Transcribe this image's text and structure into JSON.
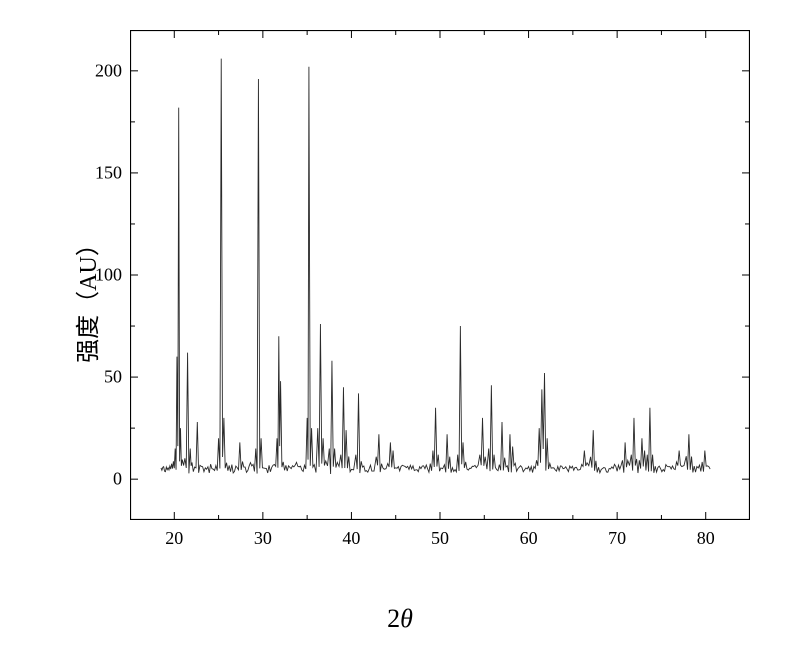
{
  "chart": {
    "type": "line",
    "xlabel": "2θ",
    "ylabel": "强度（AU）",
    "xlabel_fontsize": 26,
    "ylabel_fontsize": 24,
    "tick_fontsize": 18,
    "background_color": "#ffffff",
    "line_color": "#2a2a2a",
    "axis_color": "#000000",
    "line_width": 0.9,
    "xlim": [
      15,
      85
    ],
    "ylim": [
      -20,
      220
    ],
    "xticks": [
      20,
      30,
      40,
      50,
      60,
      70,
      80
    ],
    "yticks": [
      0,
      50,
      100,
      150,
      200
    ],
    "xtick_minor": [
      15,
      25,
      35,
      45,
      55,
      65,
      75,
      85
    ],
    "ytick_minor": [
      25,
      75,
      125,
      175
    ],
    "tick_length_major": 8,
    "tick_length_minor": 5,
    "data": [
      [
        18.5,
        5
      ],
      [
        18.7,
        6
      ],
      [
        18.9,
        4
      ],
      [
        19.1,
        7
      ],
      [
        19.3,
        5
      ],
      [
        19.5,
        8
      ],
      [
        19.7,
        6
      ],
      [
        19.9,
        10
      ],
      [
        20.1,
        15
      ],
      [
        20.3,
        60
      ],
      [
        20.5,
        182
      ],
      [
        20.7,
        25
      ],
      [
        20.9,
        8
      ],
      [
        21.2,
        10
      ],
      [
        21.5,
        62
      ],
      [
        21.8,
        15
      ],
      [
        22.0,
        7
      ],
      [
        22.3,
        6
      ],
      [
        22.6,
        28
      ],
      [
        22.9,
        8
      ],
      [
        23.2,
        6
      ],
      [
        23.5,
        5
      ],
      [
        23.8,
        7
      ],
      [
        24.1,
        6
      ],
      [
        24.4,
        5
      ],
      [
        24.7,
        8
      ],
      [
        25.0,
        20
      ],
      [
        25.3,
        206
      ],
      [
        25.6,
        30
      ],
      [
        25.9,
        8
      ],
      [
        26.2,
        6
      ],
      [
        26.5,
        7
      ],
      [
        26.8,
        5
      ],
      [
        27.1,
        6
      ],
      [
        27.4,
        18
      ],
      [
        27.7,
        8
      ],
      [
        28.0,
        6
      ],
      [
        28.3,
        5
      ],
      [
        28.6,
        7
      ],
      [
        28.9,
        6
      ],
      [
        29.2,
        15
      ],
      [
        29.5,
        196
      ],
      [
        29.8,
        20
      ],
      [
        30.1,
        7
      ],
      [
        30.4,
        5
      ],
      [
        30.7,
        6
      ],
      [
        31.0,
        5
      ],
      [
        31.3,
        6
      ],
      [
        31.6,
        20
      ],
      [
        31.8,
        70
      ],
      [
        32.0,
        48
      ],
      [
        32.3,
        10
      ],
      [
        32.6,
        6
      ],
      [
        32.9,
        5
      ],
      [
        33.2,
        6
      ],
      [
        33.5,
        5
      ],
      [
        33.8,
        7
      ],
      [
        34.1,
        5
      ],
      [
        34.4,
        6
      ],
      [
        34.7,
        8
      ],
      [
        35.0,
        30
      ],
      [
        35.2,
        202
      ],
      [
        35.5,
        25
      ],
      [
        35.8,
        8
      ],
      [
        36.2,
        25
      ],
      [
        36.5,
        76
      ],
      [
        36.8,
        20
      ],
      [
        37.1,
        8
      ],
      [
        37.5,
        15
      ],
      [
        37.8,
        58
      ],
      [
        38.1,
        15
      ],
      [
        38.4,
        7
      ],
      [
        38.8,
        12
      ],
      [
        39.1,
        45
      ],
      [
        39.4,
        24
      ],
      [
        39.7,
        10
      ],
      [
        40.0,
        6
      ],
      [
        40.5,
        12
      ],
      [
        40.8,
        42
      ],
      [
        41.1,
        10
      ],
      [
        41.4,
        6
      ],
      [
        41.7,
        5
      ],
      [
        42.0,
        6
      ],
      [
        42.3,
        5
      ],
      [
        42.8,
        10
      ],
      [
        43.1,
        22
      ],
      [
        43.4,
        8
      ],
      [
        43.7,
        5
      ],
      [
        44.1,
        9
      ],
      [
        44.4,
        18
      ],
      [
        44.7,
        14
      ],
      [
        45.0,
        7
      ],
      [
        45.3,
        5
      ],
      [
        45.6,
        6
      ],
      [
        45.9,
        5
      ],
      [
        46.2,
        6
      ],
      [
        46.5,
        5
      ],
      [
        46.8,
        6
      ],
      [
        47.1,
        5
      ],
      [
        47.4,
        5
      ],
      [
        47.7,
        6
      ],
      [
        48.0,
        5
      ],
      [
        48.3,
        6
      ],
      [
        48.6,
        5
      ],
      [
        48.9,
        8
      ],
      [
        49.2,
        14
      ],
      [
        49.5,
        35
      ],
      [
        49.8,
        12
      ],
      [
        50.1,
        6
      ],
      [
        50.5,
        8
      ],
      [
        50.8,
        22
      ],
      [
        51.1,
        10
      ],
      [
        51.4,
        6
      ],
      [
        51.7,
        5
      ],
      [
        52.0,
        12
      ],
      [
        52.3,
        75
      ],
      [
        52.6,
        18
      ],
      [
        52.9,
        7
      ],
      [
        53.2,
        5
      ],
      [
        53.5,
        6
      ],
      [
        53.8,
        5
      ],
      [
        54.1,
        6
      ],
      [
        54.5,
        12
      ],
      [
        54.8,
        30
      ],
      [
        55.1,
        10
      ],
      [
        55.5,
        15
      ],
      [
        55.8,
        46
      ],
      [
        56.1,
        12
      ],
      [
        56.4,
        6
      ],
      [
        56.7,
        8
      ],
      [
        57.0,
        28
      ],
      [
        57.3,
        10
      ],
      [
        57.6,
        8
      ],
      [
        57.9,
        22
      ],
      [
        58.2,
        16
      ],
      [
        58.5,
        8
      ],
      [
        58.8,
        5
      ],
      [
        59.1,
        6
      ],
      [
        59.4,
        5
      ],
      [
        59.7,
        6
      ],
      [
        60.0,
        5
      ],
      [
        60.3,
        6
      ],
      [
        60.6,
        5
      ],
      [
        60.9,
        10
      ],
      [
        61.2,
        25
      ],
      [
        61.5,
        44
      ],
      [
        61.8,
        52
      ],
      [
        62.1,
        20
      ],
      [
        62.4,
        8
      ],
      [
        62.7,
        5
      ],
      [
        63.0,
        6
      ],
      [
        63.3,
        5
      ],
      [
        63.6,
        6
      ],
      [
        63.9,
        5
      ],
      [
        64.2,
        6
      ],
      [
        64.5,
        5
      ],
      [
        64.8,
        6
      ],
      [
        65.1,
        5
      ],
      [
        65.4,
        6
      ],
      [
        65.7,
        5
      ],
      [
        66.0,
        8
      ],
      [
        66.3,
        14
      ],
      [
        66.6,
        8
      ],
      [
        67.0,
        10
      ],
      [
        67.3,
        24
      ],
      [
        67.6,
        10
      ],
      [
        67.9,
        6
      ],
      [
        68.2,
        5
      ],
      [
        68.5,
        6
      ],
      [
        68.8,
        5
      ],
      [
        69.1,
        6
      ],
      [
        69.4,
        5
      ],
      [
        69.7,
        6
      ],
      [
        70.0,
        5
      ],
      [
        70.3,
        6
      ],
      [
        70.6,
        8
      ],
      [
        70.9,
        18
      ],
      [
        71.2,
        8
      ],
      [
        71.6,
        12
      ],
      [
        71.9,
        30
      ],
      [
        72.2,
        10
      ],
      [
        72.5,
        8
      ],
      [
        72.8,
        20
      ],
      [
        73.1,
        14
      ],
      [
        73.4,
        12
      ],
      [
        73.7,
        35
      ],
      [
        74.0,
        12
      ],
      [
        74.3,
        7
      ],
      [
        74.6,
        5
      ],
      [
        74.9,
        6
      ],
      [
        75.2,
        5
      ],
      [
        75.5,
        6
      ],
      [
        75.8,
        5
      ],
      [
        76.1,
        6
      ],
      [
        76.4,
        5
      ],
      [
        76.7,
        8
      ],
      [
        77.0,
        14
      ],
      [
        77.3,
        7
      ],
      [
        77.8,
        10
      ],
      [
        78.1,
        22
      ],
      [
        78.4,
        10
      ],
      [
        78.7,
        6
      ],
      [
        79.0,
        5
      ],
      [
        79.3,
        6
      ],
      [
        79.6,
        8
      ],
      [
        79.9,
        14
      ],
      [
        80.2,
        8
      ],
      [
        80.5,
        5
      ]
    ]
  }
}
